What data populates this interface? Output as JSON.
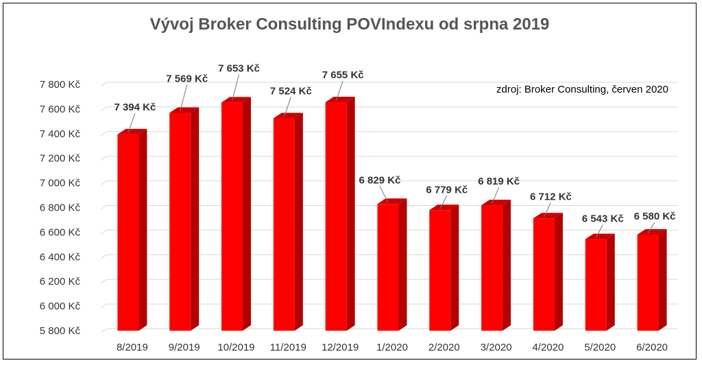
{
  "chart_data": {
    "type": "bar",
    "title": "Vývoj Broker Consulting POVIndexu od srpna 2019",
    "source_note": "zdroj: Broker Consulting, červen 2020",
    "categories": [
      "8/2019",
      "9/2019",
      "10/2019",
      "11/2019",
      "12/2019",
      "1/2020",
      "2/2020",
      "3/2020",
      "4/2020",
      "5/2020",
      "6/2020"
    ],
    "values": [
      7394,
      7569,
      7653,
      7524,
      7655,
      6829,
      6779,
      6819,
      6712,
      6543,
      6580
    ],
    "data_labels": [
      "7 394 Kč",
      "7 569 Kč",
      "7 653 Kč",
      "7 524 Kč",
      "7 655 Kč",
      "6 829 Kč",
      "6 779 Kč",
      "6 819 Kč",
      "6 712 Kč",
      "6 543 Kč",
      "6 580 Kč"
    ],
    "y_ticks": [
      5800,
      6000,
      6200,
      6400,
      6600,
      6800,
      7000,
      7200,
      7400,
      7600,
      7800
    ],
    "y_tick_labels": [
      "5 800 Kč",
      "6 000 Kč",
      "6 200 Kč",
      "6 400 Kč",
      "6 600 Kč",
      "6 800 Kč",
      "7 000 Kč",
      "7 200 Kč",
      "7 400 Kč",
      "7 600 Kč",
      "7 800 Kč"
    ],
    "ylim": [
      5800,
      7800
    ],
    "grid": true,
    "legend": "none",
    "colors": {
      "bar_front": "#ff0000",
      "bar_side": "#b30000",
      "bar_top": "#cc0000",
      "grid": "#d9d9d9"
    }
  }
}
